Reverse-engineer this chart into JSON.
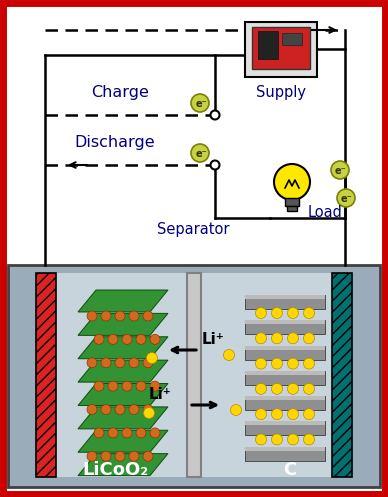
{
  "background_color": "#ffffff",
  "border_color": "#cc0000",
  "charge_text": "Charge",
  "discharge_text": "Discharge",
  "supply_text": "Supply",
  "load_text": "Load",
  "separator_text": "Separator",
  "licoo2_text": "LiCoO₂",
  "c_text": "C",
  "li_plus_text": "Li⁺",
  "e_minus_text": "e⁻",
  "electrolyte_color": "#c8d4dc",
  "anode_facecolor": "#cc2222",
  "cathode_facecolor": "#006868",
  "tank_bg_color": "#9aabba",
  "electron_fill": "#c8d044",
  "electron_edge": "#7a8000",
  "green_layer": "#228B22",
  "orange_dot": "#D2691E",
  "gray_layer": "#888888",
  "yellow_dot": "#FFD700",
  "wire_color": "#000000",
  "text_color": "#000080",
  "label_color": "#ffffff"
}
